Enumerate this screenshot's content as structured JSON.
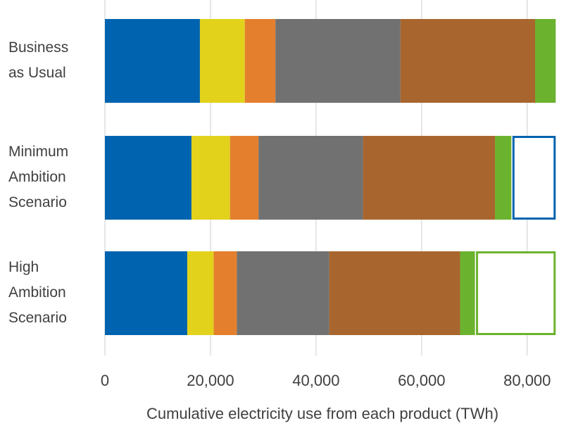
{
  "chart_data": {
    "type": "bar",
    "orientation": "horizontal",
    "stacked": true,
    "categories": [
      [
        "Business",
        "as Usual"
      ],
      [
        "Minimum",
        "Ambition",
        "Scenario"
      ],
      [
        "High",
        "Ambition",
        "Scenario"
      ]
    ],
    "series": [
      {
        "color": "#0063AF",
        "values": [
          18000,
          16400,
          15600
        ]
      },
      {
        "color": "#E2D21C",
        "values": [
          8500,
          7300,
          5000
        ]
      },
      {
        "color": "#E47F2E",
        "values": [
          5800,
          5400,
          4400
        ]
      },
      {
        "color": "#717171",
        "values": [
          23700,
          19800,
          17500
        ]
      },
      {
        "color": "#A8662E",
        "values": [
          25500,
          25000,
          24800
        ]
      },
      {
        "color": "#6BB22E",
        "values": [
          3900,
          3100,
          2800
        ]
      }
    ],
    "savings_outlines": [
      {
        "category_index": 1,
        "start": 77200,
        "end": 85400,
        "color": "#0063AF"
      },
      {
        "category_index": 2,
        "start": 70300,
        "end": 85400,
        "color": "#6BB22E"
      }
    ],
    "xlabel": "Cumulative electricity use from each product (TWh)",
    "ylabel": "",
    "xlim": [
      0,
      85500
    ],
    "xticks": [
      0,
      20000,
      40000,
      60000,
      80000
    ],
    "xtick_labels": [
      "0",
      "20,000",
      "40,000",
      "60,000",
      "80,000"
    ],
    "grid": "vertical",
    "grid_color": "#D9D9D9",
    "legend": "none"
  }
}
